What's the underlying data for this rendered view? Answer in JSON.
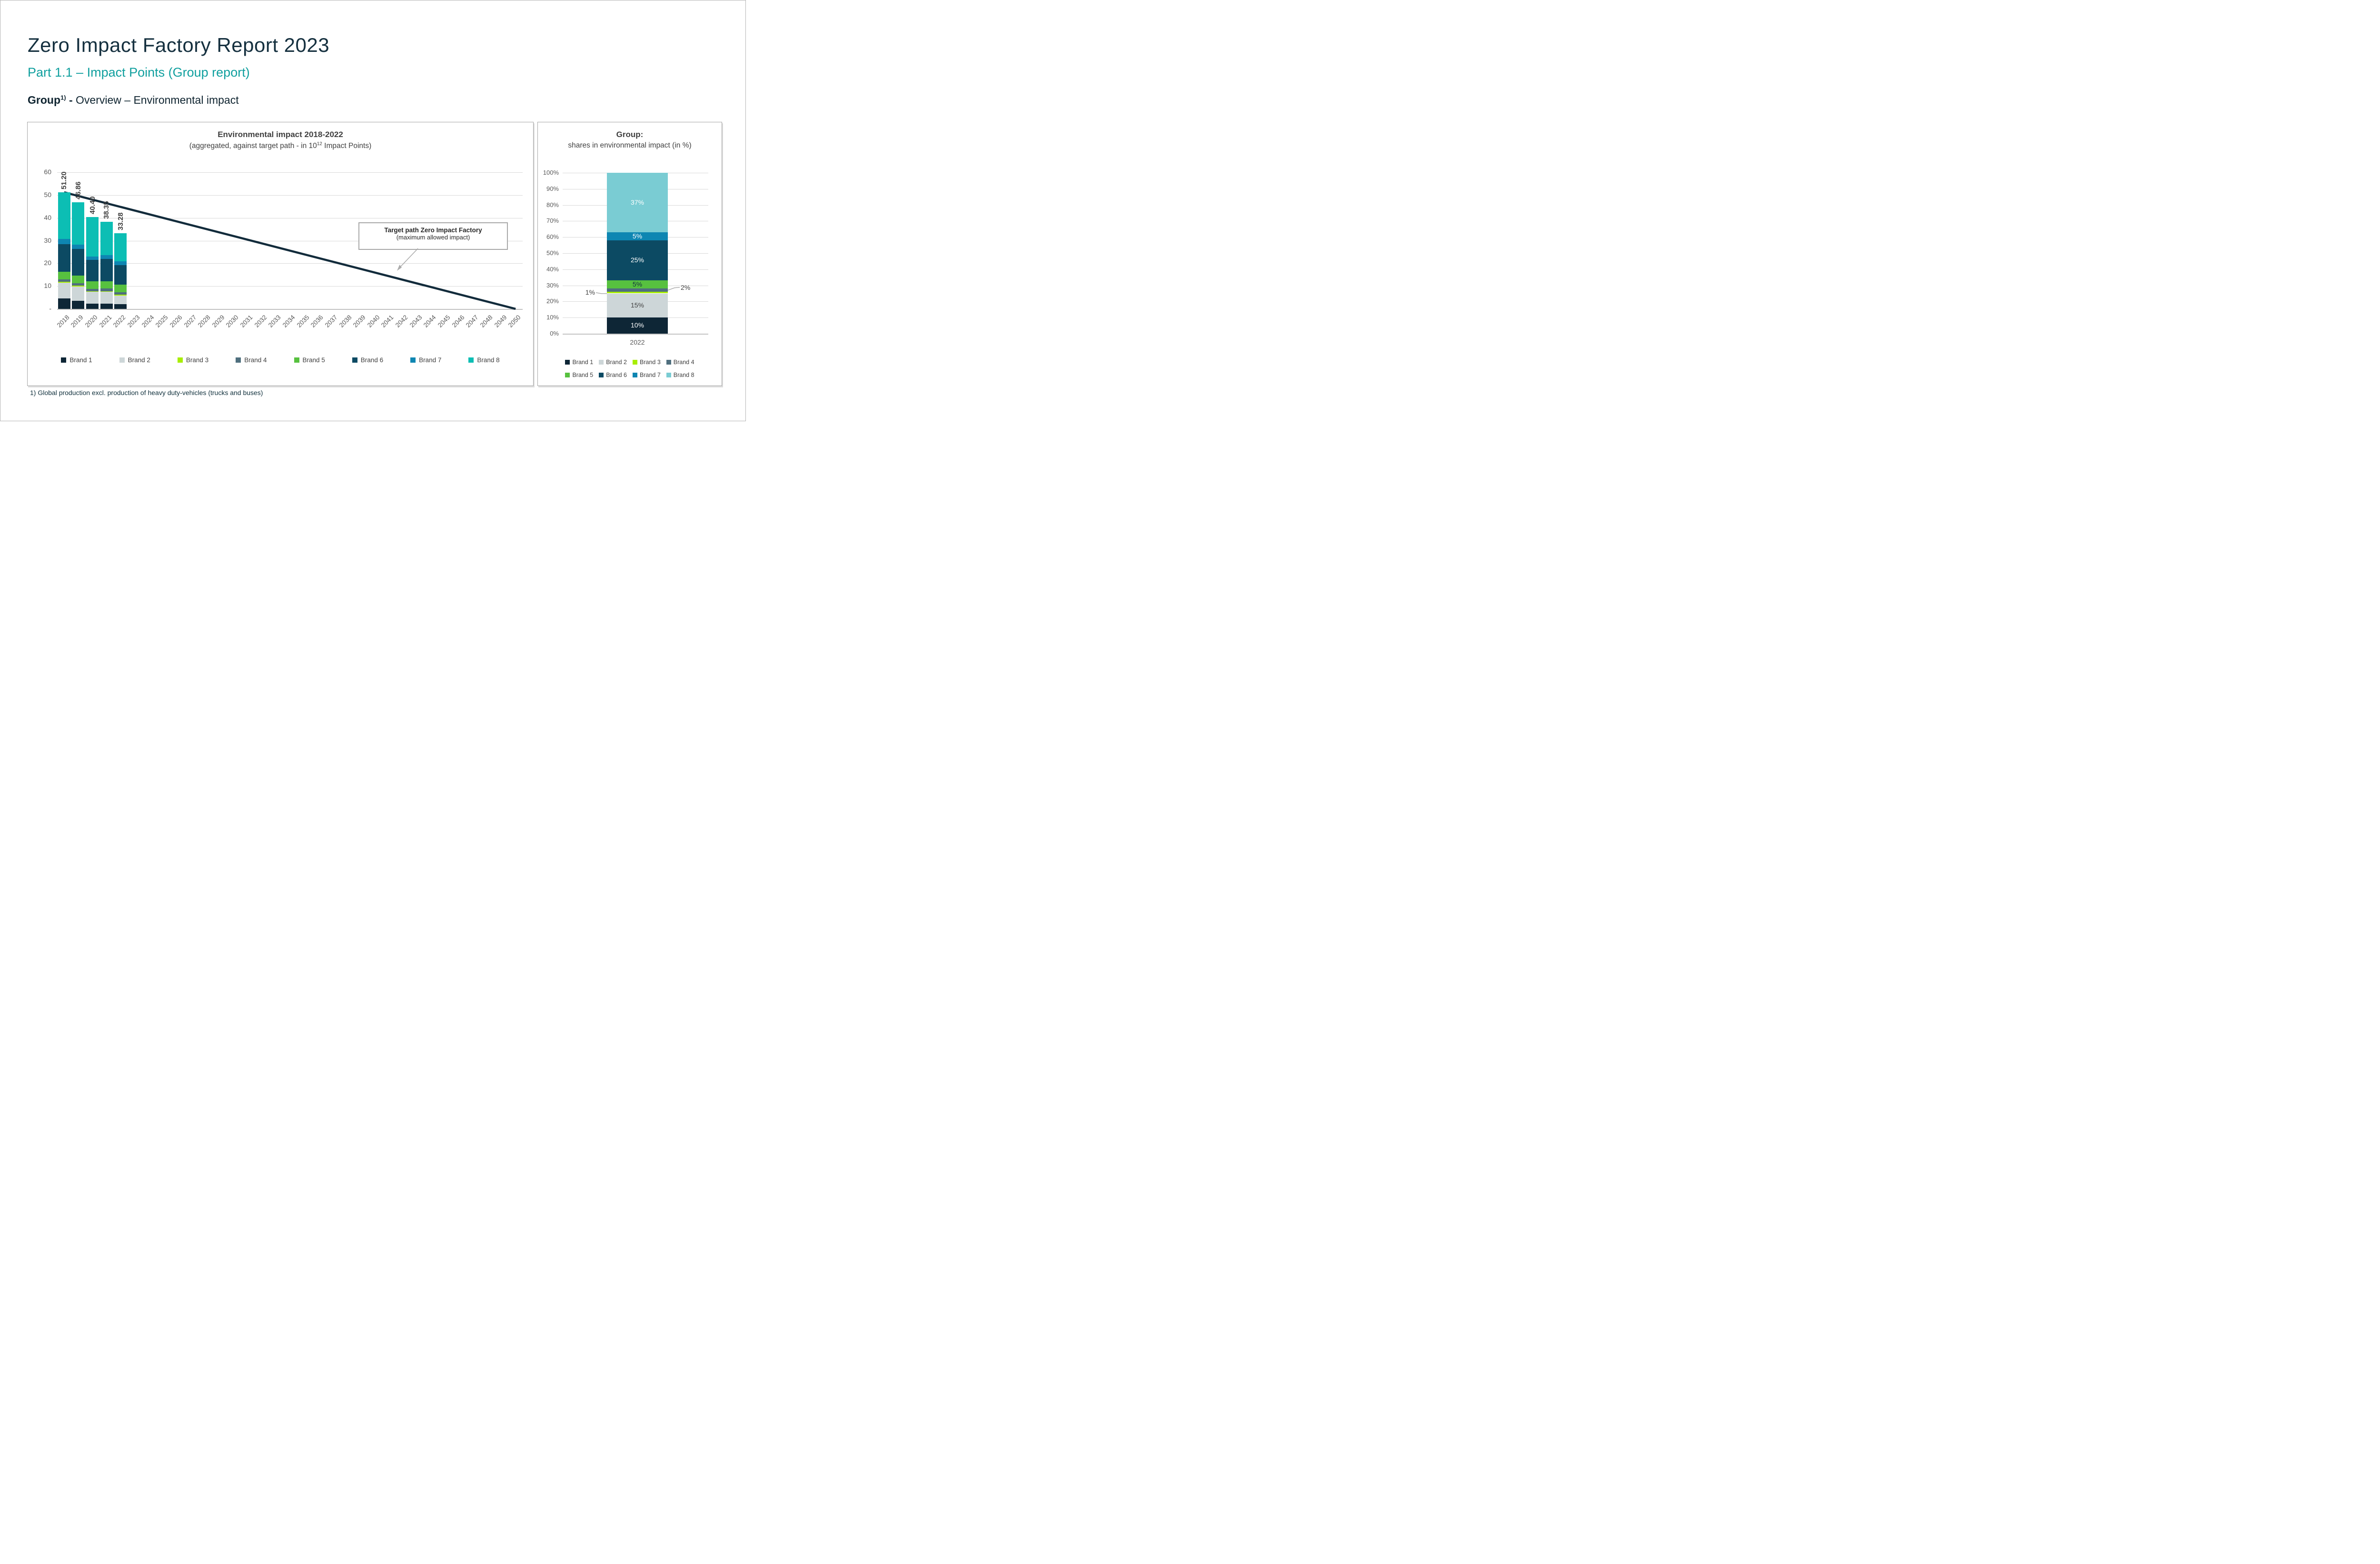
{
  "page": {
    "title": "Zero Impact Factory Report 2023",
    "subtitle": "Part 1.1 – Impact Points (Group report)",
    "heading": {
      "bold": "Group",
      "sup": "1)",
      "rest": " - Overview – Environmental impact"
    },
    "footnote": "1) Global production excl. production of heavy duty-vehicles (trucks and buses)"
  },
  "colors": {
    "title_navy": "#15303f",
    "subtitle_teal": "#0f9f9e",
    "chart_text": "#404040",
    "axis_text": "#595959",
    "gridline": "#d9d9d9",
    "panel_border": "#a6a6a6",
    "target_line": "#122b3b",
    "annotation_arrow": "#ababab"
  },
  "chart_data": [
    {
      "id": "impact_by_year",
      "type": "bar",
      "stacked": true,
      "title": "Environmental impact 2018-2022",
      "subtitle_pre": "(aggregated, against target path - in 10",
      "subtitle_sup": "12",
      "subtitle_post": " Impact Points)",
      "ylim": [
        0,
        60
      ],
      "ytick_step": 10,
      "yticks": [
        "60",
        "50",
        "40",
        "30",
        "20",
        "10",
        "-"
      ],
      "grid": true,
      "legend_position": "bottom",
      "categories": [
        "2018",
        "2019",
        "2020",
        "2021",
        "2022",
        "2023",
        "2024",
        "2025",
        "2026",
        "2027",
        "2028",
        "2029",
        "2030",
        "2031",
        "2032",
        "2033",
        "2034",
        "2035",
        "2036",
        "2037",
        "2038",
        "2039",
        "2040",
        "2041",
        "2042",
        "2043",
        "2044",
        "2045",
        "2046",
        "2047",
        "2048",
        "2049",
        "2050"
      ],
      "bar_category_count": 5,
      "totals": [
        51.2,
        46.86,
        40.4,
        38.35,
        33.28
      ],
      "total_labels": [
        "51.20",
        "46.86",
        "40.40",
        "38.35",
        "33.28"
      ],
      "series": [
        {
          "name": "Brand 1",
          "color": "#0e2636",
          "values": [
            4.5,
            3.6,
            2.2,
            2.2,
            2.0
          ]
        },
        {
          "name": "Brand 2",
          "color": "#cdd6d8",
          "values": [
            7.0,
            6.3,
            5.3,
            5.3,
            3.9
          ]
        },
        {
          "name": "Brand 3",
          "color": "#a8ee00",
          "values": [
            0.4,
            0.35,
            0.3,
            0.3,
            0.35
          ]
        },
        {
          "name": "Brand 4",
          "color": "#4f6f7e",
          "values": [
            1.0,
            1.0,
            1.0,
            1.1,
            1.0
          ]
        },
        {
          "name": "Brand 5",
          "color": "#57c13f",
          "values": [
            3.5,
            3.3,
            3.4,
            3.3,
            3.5
          ]
        },
        {
          "name": "Brand 6",
          "color": "#0c4a63",
          "values": [
            12.0,
            11.8,
            9.3,
            9.7,
            8.4
          ]
        },
        {
          "name": "Brand 7",
          "color": "#0e86b2",
          "values": [
            2.3,
            1.8,
            1.6,
            1.8,
            1.7
          ]
        },
        {
          "name": "Brand 8",
          "color": "#0cbeb4",
          "values": [
            20.5,
            18.71,
            17.3,
            14.65,
            12.43
          ]
        }
      ],
      "target_path": {
        "label_line1": "Target path Zero Impact Factory",
        "label_line2": "(maximum allowed impact)",
        "points": [
          {
            "year": 2018,
            "value": 51.2
          },
          {
            "year": 2050,
            "value": 0
          }
        ]
      }
    },
    {
      "id": "group_shares_2022",
      "type": "bar",
      "stacked": true,
      "percent": true,
      "title": "Group:",
      "subtitle": "shares in environmental impact (in %)",
      "category": "2022",
      "ylim": [
        0,
        100
      ],
      "ytick_step": 10,
      "yticks": [
        "100%",
        "90%",
        "80%",
        "70%",
        "60%",
        "50%",
        "40%",
        "30%",
        "20%",
        "10%",
        "0%"
      ],
      "grid": true,
      "segments": [
        {
          "name": "Brand 1",
          "color": "#0e2636",
          "value": 10,
          "label": "10%",
          "label_color": "#ffffff",
          "label_pos": "inside"
        },
        {
          "name": "Brand 2",
          "color": "#cdd6d8",
          "value": 15,
          "label": "15%",
          "label_color": "#404040",
          "label_pos": "inside"
        },
        {
          "name": "Brand 3",
          "color": "#a8ee00",
          "value": 1,
          "label": "1%",
          "label_color": "#404040",
          "label_pos": "callout-left"
        },
        {
          "name": "Brand 4",
          "color": "#4f6f7e",
          "value": 2,
          "label": "2%",
          "label_color": "#404040",
          "label_pos": "callout-right"
        },
        {
          "name": "Brand 5",
          "color": "#57c13f",
          "value": 5,
          "label": "5%",
          "label_color": "#12313f",
          "label_pos": "inside"
        },
        {
          "name": "Brand 6",
          "color": "#0c4a63",
          "value": 25,
          "label": "25%",
          "label_color": "#ffffff",
          "label_pos": "inside"
        },
        {
          "name": "Brand 7",
          "color": "#0e86b2",
          "value": 5,
          "label": "5%",
          "label_color": "#ffffff",
          "label_pos": "inside"
        },
        {
          "name": "Brand 8",
          "color": "#7accd3",
          "value": 37,
          "label": "37%",
          "label_color": "#ffffff",
          "label_pos": "inside"
        }
      ],
      "legend_rows": [
        [
          "Brand 1",
          "Brand 2",
          "Brand 3",
          "Brand 4"
        ],
        [
          "Brand 5",
          "Brand 6",
          "Brand 7",
          "Brand 8"
        ]
      ]
    }
  ]
}
